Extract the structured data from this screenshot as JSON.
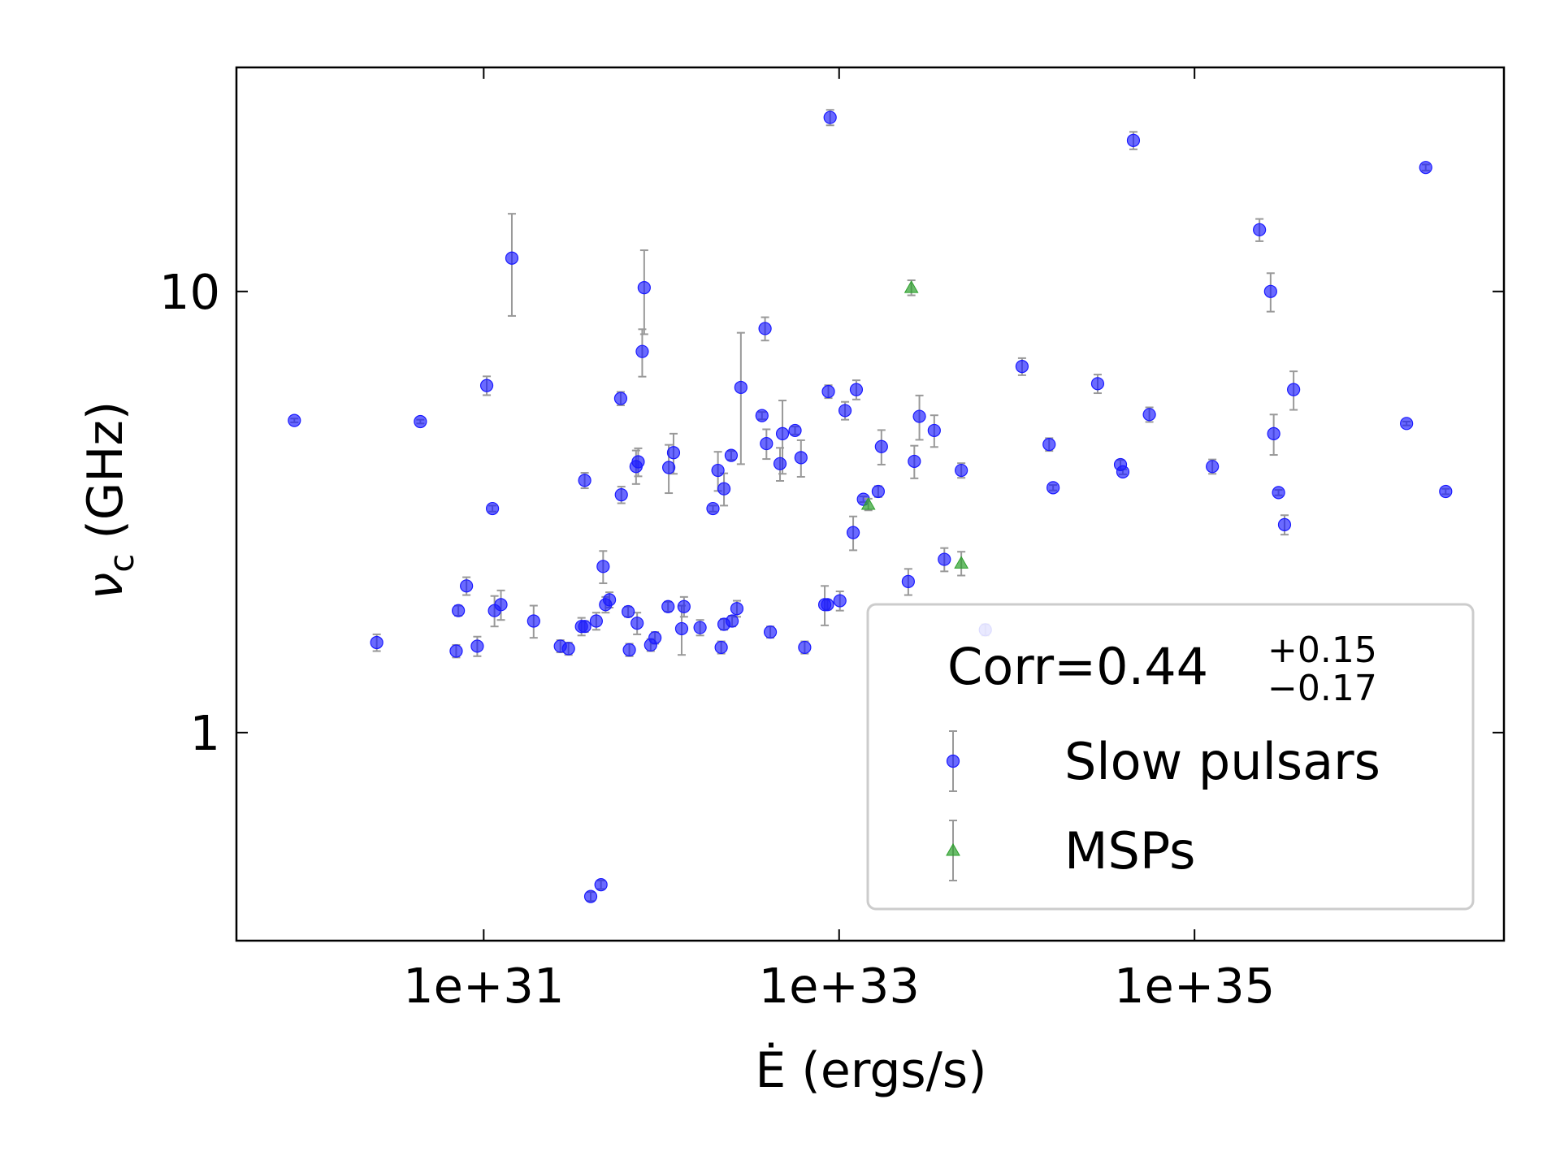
{
  "chart_data": {
    "type": "scatter",
    "xlabel": "Ė (ergs/s)",
    "ylabel": {
      "symbol": "ν",
      "subscript": "c",
      "unit": "(GHz)"
    },
    "xscale": "log",
    "yscale": "log",
    "xlim": [
      4.06e+29,
      5.51e+36
    ],
    "ylim": [
      0.3375,
      32.2
    ],
    "xticks": [
      {
        "value": 1e+31,
        "label": "1e+31"
      },
      {
        "value": 1e+33,
        "label": "1e+33"
      },
      {
        "value": 1e+35,
        "label": "1e+35"
      }
    ],
    "yticks": [
      1,
      10
    ],
    "legend": "lower right",
    "annotation": {
      "text": "Corr=0.44",
      "upper": "+0.15",
      "lower": "−0.17"
    },
    "series": [
      {
        "name": "Slow pulsars",
        "color": "#1a1aff",
        "marker": "circle",
        "x": [
          8.6e+29,
          2.5e+30,
          4.4e+30,
          7.2e+30,
          7e+30,
          8e+30,
          9.2e+30,
          1.04e+31,
          1.12e+31,
          1.15e+31,
          1.25e+31,
          1.44e+31,
          1.91e+31,
          2.7e+31,
          3e+31,
          3.55e+31,
          3.7e+31,
          3.7e+31,
          4e+31,
          4.57e+31,
          4.3e+31,
          4.7e+31,
          4.85e+31,
          5.1e+31,
          5.9e+31,
          5.95e+31,
          6.5e+31,
          6.6e+31,
          7.2e+31,
          7.4e+31,
          7.3e+31,
          7.8e+31,
          8e+31,
          8.7e+31,
          9.2e+31,
          1.09e+32,
          1.1e+32,
          1.17e+32,
          1.3e+32,
          1.34e+32,
          1.65e+32,
          1.95e+32,
          2.08e+32,
          2.17e+32,
          2.25e+32,
          2.25e+32,
          2.47e+32,
          2.5e+32,
          2.66e+32,
          2.8e+32,
          3.68e+32,
          3.83e+32,
          3.9e+32,
          4.1e+32,
          4.65e+32,
          4.8e+32,
          5.65e+32,
          6.1e+32,
          6.4e+32,
          8.3e+32,
          8.6e+32,
          8.7e+32,
          8.9e+32,
          1.01e+33,
          1.08e+33,
          1.2e+33,
          1.25e+33,
          1.37e+33,
          1.66e+33,
          1.73e+33,
          2.45e+33,
          2.65e+33,
          2.83e+33,
          3.43e+33,
          3.91e+33,
          4.87e+33,
          6.65e+33,
          1.07e+34,
          1.52e+34,
          1.6e+34,
          2.85e+34,
          3.83e+34,
          3.95e+34,
          4.53e+34,
          5.57e+34,
          1.26e+35,
          2.32e+35,
          2.68e+35,
          2.79e+35,
          2.97e+35,
          3.21e+35,
          3.61e+35,
          1.56e+36,
          2e+36,
          2.59e+36
        ],
        "values": [
          5.1,
          1.6,
          5.07,
          1.89,
          1.53,
          2.15,
          1.57,
          6.12,
          3.22,
          1.89,
          1.95,
          11.9,
          1.79,
          1.57,
          1.55,
          1.74,
          1.74,
          3.73,
          0.425,
          0.452,
          1.79,
          2.38,
          1.95,
          2.0,
          5.72,
          3.46,
          1.88,
          1.54,
          4.01,
          4.11,
          1.77,
          7.31,
          10.2,
          1.58,
          1.64,
          1.93,
          3.99,
          4.31,
          1.72,
          1.93,
          1.73,
          3.22,
          3.93,
          1.56,
          3.57,
          1.76,
          4.25,
          1.79,
          1.91,
          6.06,
          5.23,
          8.24,
          4.52,
          1.69,
          4.07,
          4.76,
          4.84,
          4.2,
          1.56,
          1.95,
          1.95,
          5.93,
          24.8,
          1.99,
          5.37,
          2.84,
          5.99,
          3.38,
          3.52,
          4.45,
          2.2,
          4.12,
          5.21,
          4.84,
          2.47,
          3.93,
          1.71,
          6.76,
          4.5,
          3.59,
          6.18,
          4.05,
          3.9,
          22.0,
          5.26,
          4.01,
          13.8,
          10.0,
          4.76,
          3.5,
          2.96,
          5.99,
          5.02,
          19.1,
          3.52
        ],
        "errors": [
          0.05,
          0.07,
          0.05,
          0.05,
          0.05,
          0.1,
          0.08,
          0.3,
          0.05,
          0.15,
          0.15,
          3.1,
          0.15,
          0.05,
          0.05,
          0.08,
          0.05,
          0.15,
          0.01,
          0.01,
          0.08,
          0.2,
          0.08,
          0.08,
          0.2,
          0.15,
          0.05,
          0.05,
          0.35,
          0.3,
          0.1,
          0.9,
          2.2,
          0.05,
          0.05,
          0.05,
          0.5,
          0.45,
          0.22,
          0.1,
          0.07,
          0.05,
          0.4,
          0.05,
          0.3,
          0.05,
          0.1,
          0.05,
          0.08,
          2.0,
          0.1,
          0.5,
          0.35,
          0.05,
          0.35,
          0.9,
          0.1,
          0.4,
          0.05,
          0.2,
          0.05,
          0.2,
          1.0,
          0.1,
          0.25,
          0.25,
          0.3,
          0.05,
          0.1,
          0.4,
          0.15,
          0.35,
          0.6,
          0.4,
          0.15,
          0.15,
          0.05,
          0.3,
          0.15,
          0.05,
          0.3,
          0.1,
          0.05,
          1.0,
          0.2,
          0.15,
          0.8,
          1.0,
          0.5,
          0.05,
          0.15,
          0.6,
          0.05,
          0.3,
          0.05
        ]
      },
      {
        "name": "MSPs",
        "color": "#2ca02c",
        "marker": "triangle",
        "x": [
          2.55e+33,
          1.46e+33,
          4.87e+33
        ],
        "values": [
          10.2,
          3.29,
          2.42
        ],
        "errors": [
          0.4,
          0.1,
          0.15
        ]
      }
    ]
  }
}
